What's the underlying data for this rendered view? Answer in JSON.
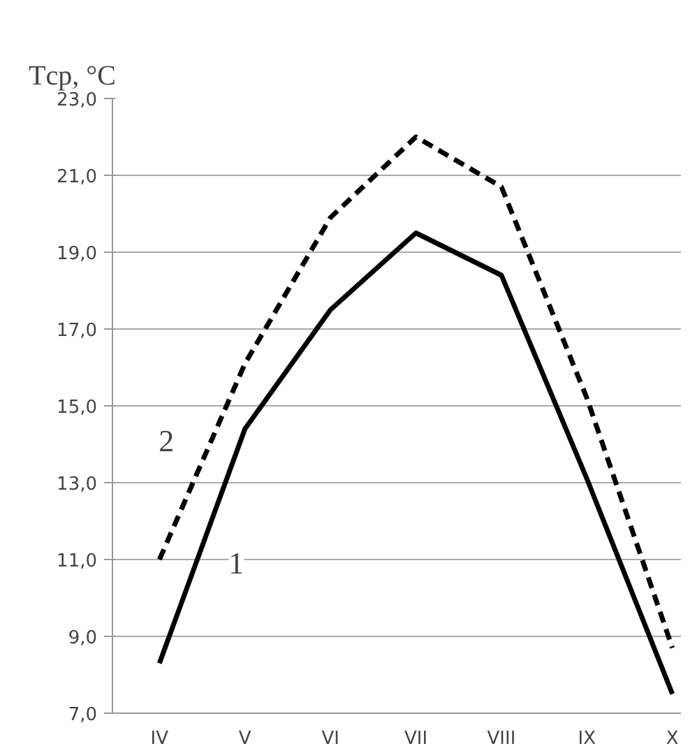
{
  "chart_data": {
    "type": "line",
    "title": "Tср, °C",
    "categories": [
      "IV",
      "V",
      "VI",
      "VII",
      "VIII",
      "IX",
      "X"
    ],
    "series": [
      {
        "name": "1",
        "color": "#000000",
        "line_style": "solid",
        "values": [
          8.3,
          14.4,
          17.5,
          19.5,
          18.4,
          13.1,
          7.5
        ]
      },
      {
        "name": "2",
        "color": "#000000",
        "line_style": "dashed",
        "values": [
          11.0,
          16.1,
          19.9,
          22.0,
          20.7,
          15.2,
          8.7
        ]
      }
    ],
    "ylim": [
      7,
      23
    ],
    "yticks": [
      {
        "value": 7,
        "label": "7,0"
      },
      {
        "value": 9,
        "label": "9,0"
      },
      {
        "value": 11,
        "label": "11,0"
      },
      {
        "value": 13,
        "label": "13,0"
      },
      {
        "value": 15,
        "label": "15,0"
      },
      {
        "value": 17,
        "label": "17,0"
      },
      {
        "value": 19,
        "label": "19,0"
      },
      {
        "value": 21,
        "label": "21,0"
      },
      {
        "value": 23,
        "label": "23,0"
      }
    ],
    "grid": "y",
    "marker": "none"
  }
}
